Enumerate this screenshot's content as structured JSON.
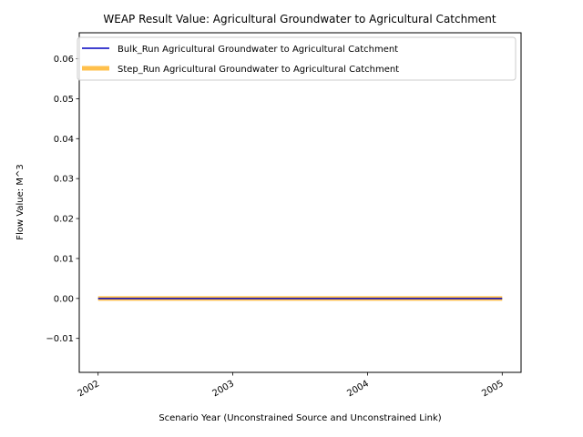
{
  "chart_data": {
    "type": "line",
    "title": "WEAP Result Value: Agricultural Groundwater to Agricultural Catchment",
    "xlabel": "Scenario Year (Unconstrained Source and Unconstrained Link)",
    "ylabel": "Flow Value: M^3",
    "x": [
      2002,
      2003,
      2004,
      2005
    ],
    "xlim": [
      2001.86,
      2005.14
    ],
    "ylim": [
      -0.0185,
      0.0665
    ],
    "xticks": [
      "2002",
      "2003",
      "2004",
      "2005"
    ],
    "yticks": [
      -0.01,
      0.0,
      0.01,
      0.02,
      0.03,
      0.04,
      0.05,
      0.06
    ],
    "ytick_labels": [
      "−0.01",
      "0.00",
      "0.01",
      "0.02",
      "0.03",
      "0.04",
      "0.05",
      "0.06"
    ],
    "grid": false,
    "legend_position": "upper-right",
    "series": [
      {
        "name": "Bulk_Run Agricultural Groundwater to Agricultural Catchment",
        "values": [
          0,
          0,
          0,
          0
        ],
        "color": "#0000bf"
      },
      {
        "name": "Step_Run Agricultural Groundwater to Agricultural Catchment",
        "values": [
          0,
          0,
          0,
          0
        ],
        "color": "#ffa500"
      }
    ]
  }
}
